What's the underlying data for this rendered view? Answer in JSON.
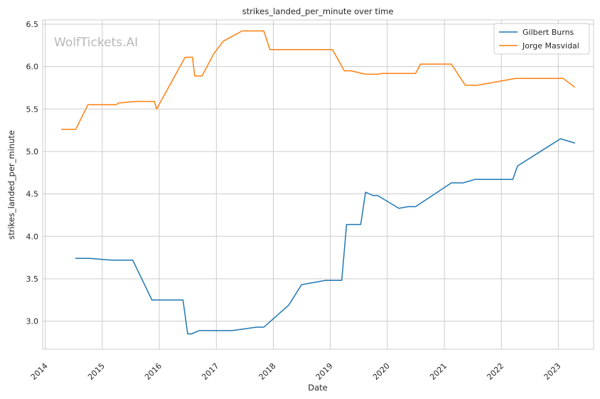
{
  "chart_data": {
    "type": "line",
    "title": "strikes_landed_per_minute over time",
    "xlabel": "Date",
    "ylabel": "strikes_landed_per_minute",
    "watermark": "WolfTickets.AI",
    "grid": true,
    "legend_position": "top-right",
    "xlim": [
      "2013-12-15",
      "2023-08-15"
    ],
    "ylim": [
      2.67,
      6.55
    ],
    "x_ticks": [
      "2014",
      "2015",
      "2016",
      "2017",
      "2018",
      "2019",
      "2020",
      "2021",
      "2022",
      "2023"
    ],
    "y_ticks": [
      "3.0",
      "3.5",
      "4.0",
      "4.5",
      "5.0",
      "5.5",
      "6.0",
      "6.5"
    ],
    "series": [
      {
        "name": "Gilbert Burns",
        "color": "#1f77b4",
        "points": [
          {
            "x": "2014-07-15",
            "y": 3.74
          },
          {
            "x": "2014-10-15",
            "y": 3.74
          },
          {
            "x": "2015-03-01",
            "y": 3.72
          },
          {
            "x": "2015-07-15",
            "y": 3.72
          },
          {
            "x": "2015-11-15",
            "y": 3.25
          },
          {
            "x": "2016-06-01",
            "y": 3.25
          },
          {
            "x": "2016-07-01",
            "y": 2.85
          },
          {
            "x": "2016-07-25",
            "y": 2.85
          },
          {
            "x": "2016-09-15",
            "y": 2.89
          },
          {
            "x": "2017-04-15",
            "y": 2.89
          },
          {
            "x": "2017-09-15",
            "y": 2.93
          },
          {
            "x": "2017-11-01",
            "y": 2.93
          },
          {
            "x": "2018-04-10",
            "y": 3.19
          },
          {
            "x": "2018-07-01",
            "y": 3.43
          },
          {
            "x": "2018-12-01",
            "y": 3.48
          },
          {
            "x": "2019-03-15",
            "y": 3.48
          },
          {
            "x": "2019-04-15",
            "y": 4.14
          },
          {
            "x": "2019-07-15",
            "y": 4.14
          },
          {
            "x": "2019-08-15",
            "y": 4.52
          },
          {
            "x": "2019-10-01",
            "y": 4.48
          },
          {
            "x": "2019-11-01",
            "y": 4.48
          },
          {
            "x": "2020-03-15",
            "y": 4.33
          },
          {
            "x": "2020-05-15",
            "y": 4.35
          },
          {
            "x": "2020-07-01",
            "y": 4.35
          },
          {
            "x": "2021-02-15",
            "y": 4.63
          },
          {
            "x": "2021-05-01",
            "y": 4.63
          },
          {
            "x": "2021-07-15",
            "y": 4.67
          },
          {
            "x": "2022-03-15",
            "y": 4.67
          },
          {
            "x": "2022-04-15",
            "y": 4.83
          },
          {
            "x": "2023-01-15",
            "y": 5.15
          },
          {
            "x": "2023-04-15",
            "y": 5.1
          }
        ]
      },
      {
        "name": "Jorge Masvidal",
        "color": "#ff7f0e",
        "points": [
          {
            "x": "2014-04-15",
            "y": 5.26
          },
          {
            "x": "2014-07-15",
            "y": 5.26
          },
          {
            "x": "2014-10-01",
            "y": 5.55
          },
          {
            "x": "2015-04-01",
            "y": 5.55
          },
          {
            "x": "2015-04-15",
            "y": 5.57
          },
          {
            "x": "2015-08-01",
            "y": 5.59
          },
          {
            "x": "2015-12-01",
            "y": 5.59
          },
          {
            "x": "2015-12-15",
            "y": 5.5
          },
          {
            "x": "2016-06-15",
            "y": 6.11
          },
          {
            "x": "2016-08-01",
            "y": 6.11
          },
          {
            "x": "2016-08-15",
            "y": 5.89
          },
          {
            "x": "2016-10-01",
            "y": 5.89
          },
          {
            "x": "2016-12-15",
            "y": 6.15
          },
          {
            "x": "2017-02-15",
            "y": 6.3
          },
          {
            "x": "2017-06-15",
            "y": 6.42
          },
          {
            "x": "2017-11-01",
            "y": 6.42
          },
          {
            "x": "2017-12-10",
            "y": 6.2
          },
          {
            "x": "2019-01-15",
            "y": 6.2
          },
          {
            "x": "2019-04-01",
            "y": 5.95
          },
          {
            "x": "2019-05-15",
            "y": 5.95
          },
          {
            "x": "2019-08-15",
            "y": 5.91
          },
          {
            "x": "2019-11-01",
            "y": 5.91
          },
          {
            "x": "2019-12-01",
            "y": 5.92
          },
          {
            "x": "2020-07-01",
            "y": 5.92
          },
          {
            "x": "2020-08-01",
            "y": 6.03
          },
          {
            "x": "2021-02-15",
            "y": 6.03
          },
          {
            "x": "2021-05-15",
            "y": 5.78
          },
          {
            "x": "2021-08-01",
            "y": 5.78
          },
          {
            "x": "2022-04-01",
            "y": 5.86
          },
          {
            "x": "2023-02-01",
            "y": 5.86
          },
          {
            "x": "2023-04-15",
            "y": 5.76
          }
        ]
      }
    ]
  }
}
